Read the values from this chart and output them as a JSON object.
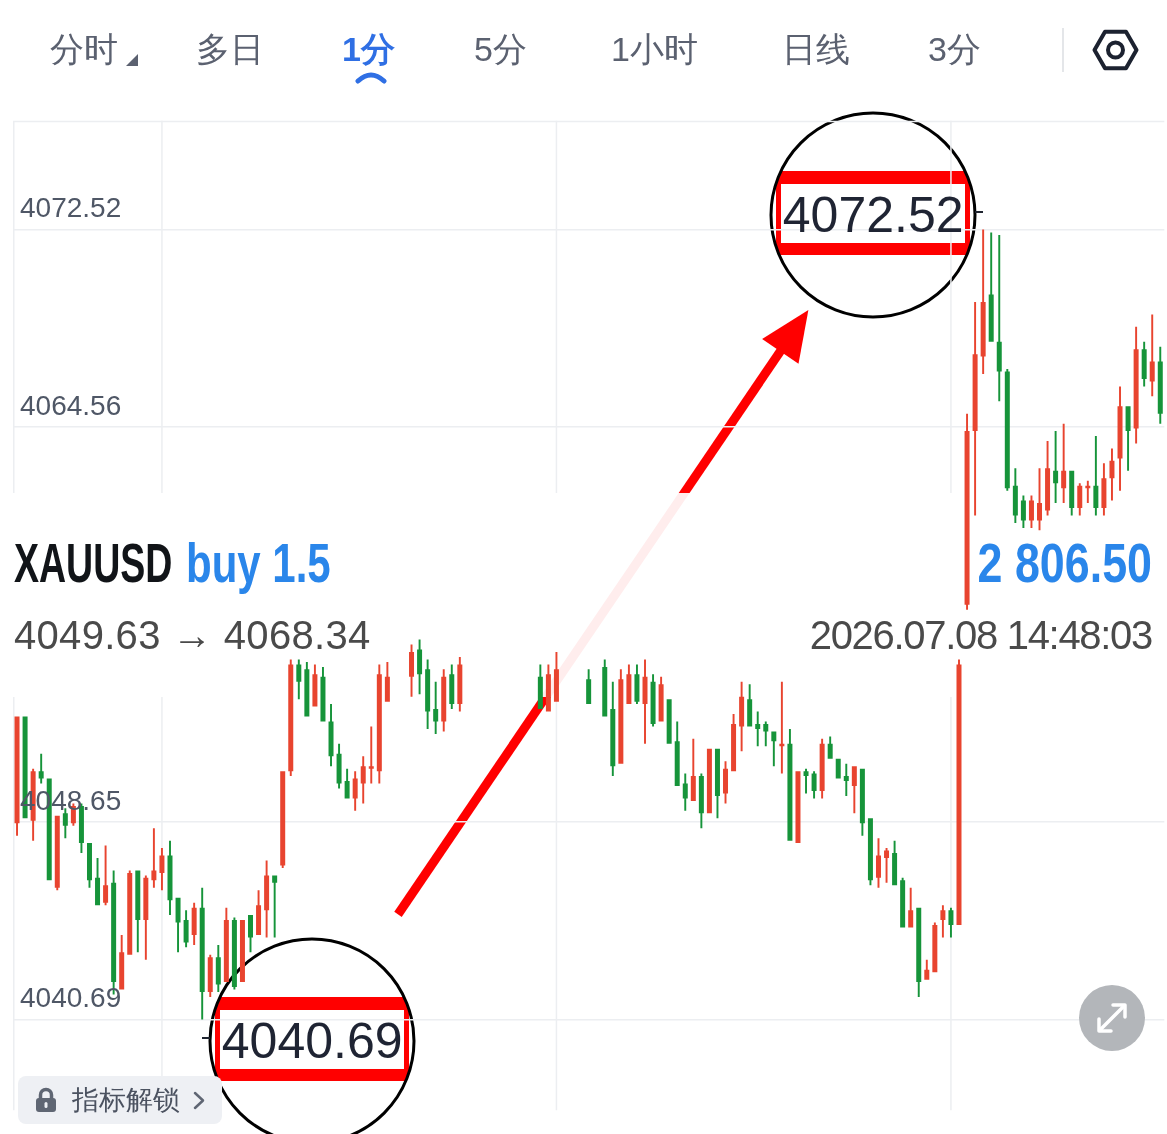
{
  "chart_data": {
    "type": "candlestick",
    "categories": [
      null,
      null,
      null,
      null,
      null,
      null,
      null,
      null,
      null,
      null,
      null,
      null,
      null,
      null,
      null,
      null,
      null,
      null,
      null,
      null,
      null,
      null,
      null,
      null,
      null,
      null,
      null,
      null,
      null,
      null,
      null,
      null,
      null,
      null,
      null,
      null,
      null,
      null,
      null,
      null,
      null,
      null,
      null,
      null,
      null,
      null,
      null,
      null,
      null,
      null,
      null,
      null,
      null,
      null,
      null,
      null,
      null,
      null,
      null,
      null,
      null,
      null,
      null,
      null,
      null,
      null,
      null,
      null,
      null,
      null,
      null,
      null,
      null,
      null,
      null,
      null,
      null,
      null,
      null,
      null,
      null,
      null,
      null,
      null,
      null,
      null,
      null,
      null,
      null,
      null,
      null,
      null,
      null,
      null,
      null,
      null,
      null,
      null,
      null,
      null,
      null,
      null,
      null,
      null,
      null,
      null,
      null,
      null,
      null,
      null,
      null,
      null,
      null,
      null,
      null,
      null,
      null,
      null,
      null,
      null,
      null,
      null,
      null,
      null,
      null,
      null,
      null,
      null,
      null,
      null,
      null,
      null,
      null,
      null,
      null,
      null,
      null,
      null,
      null,
      null,
      null,
      null,
      null
    ],
    "ohlc": [
      [
        4048.6,
        4052.9,
        4048.1,
        4052.9
      ],
      [
        4052.9,
        4052.9,
        4048.8,
        4048.8
      ],
      [
        4048.7,
        4050.8,
        4047.9,
        4050.7
      ],
      [
        4050.7,
        4051.4,
        4050.2,
        4050.4
      ],
      [
        4050.4,
        4050.4,
        4046.3,
        4046.3
      ],
      [
        4046.0,
        4048.9,
        4045.9,
        4048.9
      ],
      [
        4049.0,
        4049.2,
        4048.0,
        4048.5
      ],
      [
        4048.6,
        4049.4,
        4048.5,
        4049.3
      ],
      [
        4049.3,
        4049.4,
        4047.4,
        4047.8
      ],
      [
        4047.8,
        4047.8,
        4046.0,
        4046.3
      ],
      [
        4046.4,
        4047.2,
        4045.3,
        4045.3
      ],
      [
        4045.4,
        4047.7,
        4045.3,
        4046.1
      ],
      [
        4046.2,
        4046.7,
        4041.7,
        4042.2
      ],
      [
        4041.9,
        4044.1,
        4041.9,
        4043.4
      ],
      [
        4043.3,
        4046.7,
        4043.3,
        4046.6
      ],
      [
        4046.7,
        4046.7,
        4043.4,
        4044.7
      ],
      [
        4044.7,
        4046.5,
        4043.1,
        4046.4
      ],
      [
        4046.3,
        4048.4,
        4046.0,
        4046.7
      ],
      [
        4046.6,
        4047.6,
        4045.9,
        4047.3
      ],
      [
        4047.3,
        4047.9,
        4044.9,
        4045.5
      ],
      [
        4045.6,
        4045.6,
        4043.4,
        4044.6
      ],
      [
        4044.7,
        4045.1,
        4043.6,
        4043.8
      ],
      [
        4044.1,
        4045.4,
        4043.7,
        4045.2
      ],
      [
        4045.2,
        4046.0,
        4040.69,
        4041.8
      ],
      [
        4041.8,
        4043.3,
        4041.6,
        4043.2
      ],
      [
        4043.2,
        4043.7,
        4041.8,
        4042.1
      ],
      [
        4042.2,
        4045.2,
        4042.2,
        4044.7
      ],
      [
        4044.7,
        4044.8,
        4041.9,
        4042.0
      ],
      [
        4042.2,
        4044.7,
        4042.2,
        4044.7
      ],
      [
        4044.9,
        4044.9,
        4043.4,
        4044.0
      ],
      [
        4044.1,
        4045.9,
        4044.1,
        4045.3
      ],
      [
        4045.1,
        4047.1,
        4044.0,
        4046.5
      ],
      [
        4046.5,
        4046.5,
        4044.0,
        4046.2
      ],
      [
        4046.9,
        4050.7,
        4046.8,
        4050.7
      ],
      [
        4050.7,
        4055.2,
        4050.5,
        4055.0
      ],
      [
        4055.0,
        4055.2,
        4053.6,
        4054.3
      ],
      [
        4054.8,
        4055.1,
        4052.9,
        4052.9
      ],
      [
        4053.3,
        4055.0,
        4053.3,
        4054.6
      ],
      [
        4054.5,
        4054.9,
        4052.7,
        4052.7
      ],
      [
        4052.7,
        4053.4,
        4050.9,
        4051.3
      ],
      [
        4051.4,
        4051.8,
        4050.0,
        4050.2
      ],
      [
        4050.3,
        4050.8,
        4049.6,
        4049.6
      ],
      [
        4049.6,
        4050.7,
        4049.1,
        4050.4
      ],
      [
        4050.2,
        4051.3,
        4049.4,
        4050.9
      ],
      [
        4050.8,
        4052.5,
        4050.2,
        4050.9
      ],
      [
        4050.7,
        4055.0,
        4050.2,
        4054.6
      ],
      [
        4053.5,
        4055.1,
        4053.5,
        4054.5
      ],
      null,
      null,
      [
        4054.5,
        4055.8,
        4053.7,
        4055.5
      ],
      [
        4055.6,
        4056.0,
        4053.8,
        4054.6
      ],
      [
        4054.8,
        4055.2,
        4052.4,
        4053.1
      ],
      [
        4053.2,
        4054.3,
        4052.2,
        4052.7
      ],
      [
        4052.7,
        4054.8,
        4052.3,
        4054.5
      ],
      [
        4054.6,
        4055.0,
        4053.2,
        4053.4
      ],
      [
        4053.4,
        4055.3,
        4053.1,
        4055.0
      ],
      null,
      null,
      null,
      null,
      null,
      null,
      null,
      null,
      null,
      [
        4054.5,
        4055.0,
        4053.2,
        4053.2
      ],
      [
        4053.1,
        4055.0,
        4053.1,
        4054.6
      ],
      [
        4053.5,
        4055.5,
        4053.5,
        4054.8
      ],
      null,
      null,
      null,
      [
        4054.4,
        4054.8,
        4053.4,
        4053.4
      ],
      null,
      [
        4054.9,
        4055.2,
        4052.9,
        4052.9
      ],
      [
        4053.2,
        4054.3,
        4050.5,
        4050.9
      ],
      [
        4051.0,
        4054.8,
        4051.0,
        4054.4
      ],
      [
        4053.4,
        4055.0,
        4053.4,
        4054.6
      ],
      [
        4054.6,
        4055.0,
        4053.4,
        4053.5
      ],
      [
        4053.4,
        4055.2,
        4051.8,
        4054.5
      ],
      [
        4054.3,
        4054.6,
        4052.5,
        4052.6
      ],
      [
        4052.7,
        4054.5,
        4052.7,
        4054.2
      ],
      [
        4053.6,
        4053.6,
        4051.8,
        4051.8
      ],
      [
        4051.9,
        4052.7,
        4050.1,
        4050.1
      ],
      [
        4050.2,
        4050.6,
        4049.1,
        4049.6
      ],
      [
        4049.5,
        4052.0,
        4049.5,
        4050.5
      ],
      [
        4050.5,
        4050.6,
        4048.4,
        4049.0
      ],
      [
        4049.0,
        4051.6,
        4049.0,
        4051.6
      ],
      [
        4051.6,
        4051.6,
        4048.8,
        4049.7
      ],
      [
        4049.8,
        4051.1,
        4049.4,
        4050.8
      ],
      [
        4050.7,
        4053.0,
        4050.7,
        4052.6
      ],
      [
        4052.5,
        4054.3,
        4051.5,
        4053.7
      ],
      [
        4053.6,
        4054.2,
        4052.5,
        4052.5
      ],
      [
        4052.6,
        4053.1,
        4051.7,
        4052.4
      ],
      [
        4052.6,
        4052.7,
        4051.7,
        4052.3
      ],
      [
        4052.3,
        4052.3,
        4050.9,
        4051.9
      ],
      [
        4051.7,
        4054.3,
        4050.6,
        4051.8
      ],
      [
        4051.8,
        4052.4,
        4047.9,
        4047.9
      ],
      [
        4047.8,
        4050.7,
        4047.8,
        4050.7
      ],
      [
        4050.7,
        4050.8,
        4049.8,
        4050.5
      ],
      [
        4050.6,
        4050.7,
        4049.6,
        4049.9
      ],
      [
        4049.9,
        4052.0,
        4049.6,
        4051.8
      ],
      [
        4051.8,
        4052.1,
        4051.2,
        4051.2
      ],
      [
        4051.2,
        4051.2,
        4050.4,
        4050.4
      ],
      [
        4050.5,
        4051.0,
        4049.7,
        4050.3
      ],
      [
        4050.1,
        4050.9,
        4049.0,
        4050.9
      ],
      [
        4050.8,
        4050.8,
        4048.1,
        4048.6
      ],
      [
        4048.8,
        4048.8,
        4046.1,
        4046.3
      ],
      [
        4046.4,
        4048.0,
        4046.0,
        4047.3
      ],
      [
        4047.2,
        4047.6,
        4046.2,
        4047.5
      ],
      [
        4047.4,
        4047.9,
        4046.1,
        4046.1
      ],
      [
        4046.3,
        4046.4,
        4044.4,
        4044.4
      ],
      [
        4044.4,
        4046.0,
        4044.4,
        4045.1
      ],
      [
        4045.2,
        4045.2,
        4041.6,
        4042.2
      ],
      [
        4042.3,
        4043.1,
        4042.3,
        4042.7
      ],
      [
        4042.6,
        4044.6,
        4042.6,
        4044.5
      ],
      [
        4044.7,
        4045.3,
        4044.0,
        4045.1
      ],
      [
        4045.1,
        4045.2,
        4044.0,
        4044.5
      ],
      [
        4044.5,
        4055.2,
        4044.5,
        4055.0
      ],
      [
        4057.4,
        4065.1,
        4057.2,
        4064.4
      ],
      [
        4064.4,
        4069.6,
        4061.0,
        4067.5
      ],
      [
        4067.4,
        4072.52,
        4066.7,
        4069.6
      ],
      [
        4069.9,
        4072.4,
        4068.0,
        4068.0
      ],
      [
        4068.0,
        4072.3,
        4065.6,
        4066.8
      ],
      [
        4066.8,
        4066.9,
        4062.0,
        4062.1
      ],
      [
        4062.2,
        4062.9,
        4060.7,
        4061.0
      ],
      [
        4061.6,
        4061.8,
        4060.5,
        4060.8
      ],
      [
        4060.8,
        4061.8,
        4060.5,
        4061.6
      ],
      [
        4060.8,
        4062.9,
        4060.4,
        4061.5
      ],
      [
        4061.2,
        4064.0,
        4061.0,
        4062.9
      ],
      [
        4062.8,
        4064.4,
        4061.5,
        4062.3
      ],
      [
        4062.1,
        4064.7,
        4061.5,
        4062.8
      ],
      [
        4062.8,
        4062.8,
        4061.0,
        4061.3
      ],
      [
        4061.3,
        4062.3,
        4061.0,
        4062.2
      ],
      [
        4062.1,
        4062.4,
        4061.5,
        4062.2
      ],
      [
        4062.2,
        4064.2,
        4061.0,
        4061.3
      ],
      [
        4061.3,
        4063.1,
        4061.0,
        4062.5
      ],
      [
        4062.5,
        4063.7,
        4061.6,
        4063.2
      ],
      [
        4063.3,
        4066.2,
        4062.0,
        4065.4
      ],
      [
        4065.4,
        4065.4,
        4062.8,
        4064.4
      ],
      [
        4064.5,
        4068.6,
        4063.9,
        4067.7
      ],
      [
        4067.7,
        4068.0,
        4066.2,
        4066.5
      ],
      [
        4066.4,
        4069.1,
        4065.8,
        4067.2
      ],
      [
        4067.2,
        4067.8,
        4064.7,
        4065.1
      ]
    ],
    "colors": [
      "#e8442f",
      "#16943a",
      "#e8442f",
      "#16943a",
      "#16943a",
      "#e8442f",
      "#16943a",
      "#e8442f",
      "#16943a",
      "#16943a",
      "#16943a",
      "#e8442f",
      "#16943a",
      "#e8442f",
      "#e8442f",
      "#16943a",
      "#e8442f",
      "#e8442f",
      "#e8442f",
      "#16943a",
      "#16943a",
      "#16943a",
      "#e8442f",
      "#16943a",
      "#e8442f",
      "#16943a",
      "#e8442f",
      "#16943a",
      "#e8442f",
      "#16943a",
      "#e8442f",
      "#e8442f",
      "#16943a",
      "#e8442f",
      "#e8442f",
      "#16943a",
      "#16943a",
      "#e8442f",
      "#16943a",
      "#16943a",
      "#16943a",
      "#16943a",
      "#e8442f",
      "#e8442f",
      "#e8442f",
      "#e8442f",
      "#e8442f",
      null,
      null,
      "#e8442f",
      "#16943a",
      "#16943a",
      "#16943a",
      "#e8442f",
      "#16943a",
      "#e8442f",
      null,
      null,
      null,
      null,
      null,
      null,
      null,
      null,
      null,
      "#16943a",
      "#e8442f",
      "#e8442f",
      null,
      null,
      null,
      "#16943a",
      null,
      "#16943a",
      "#16943a",
      "#e8442f",
      "#e8442f",
      "#16943a",
      "#e8442f",
      "#16943a",
      "#e8442f",
      "#16943a",
      "#16943a",
      "#16943a",
      "#e8442f",
      "#16943a",
      "#e8442f",
      "#16943a",
      "#e8442f",
      "#e8442f",
      "#e8442f",
      "#16943a",
      "#16943a",
      "#16943a",
      "#16943a",
      "#e8442f",
      "#16943a",
      "#e8442f",
      "#16943a",
      "#16943a",
      "#e8442f",
      "#16943a",
      "#16943a",
      "#16943a",
      "#e8442f",
      "#16943a",
      "#16943a",
      "#e8442f",
      "#e8442f",
      "#16943a",
      "#16943a",
      "#e8442f",
      "#16943a",
      "#e8442f",
      "#e8442f",
      "#e8442f",
      "#16943a",
      "#e8442f",
      "#e8442f",
      "#e8442f",
      "#e8442f",
      "#16943a",
      "#16943a",
      "#16943a",
      "#16943a",
      "#16943a",
      "#e8442f",
      "#e8442f",
      "#e8442f",
      "#16943a",
      "#e8442f",
      "#16943a",
      "#e8442f",
      "#e8442f",
      "#16943a",
      "#e8442f",
      "#e8442f",
      "#e8442f",
      "#16943a",
      "#e8442f",
      "#16943a",
      "#e8442f",
      "#16943a"
    ],
    "ylim": [
      4037.04,
      4076.9
    ],
    "yticks": [
      4040.69,
      4048.65,
      4064.56,
      4072.52
    ],
    "grid": true,
    "tick_labels": "y",
    "annotations": [
      "分时",
      "多日",
      "1分",
      "5分",
      "1小时",
      "日线",
      "3分",
      "XAUUSD",
      "buy 1.5",
      "2 806.50",
      "4049.63 → 4068.34",
      "2026.07.08 14:48:03",
      "指标解锁",
      "4072.52",
      "4040.69"
    ]
  }
}
